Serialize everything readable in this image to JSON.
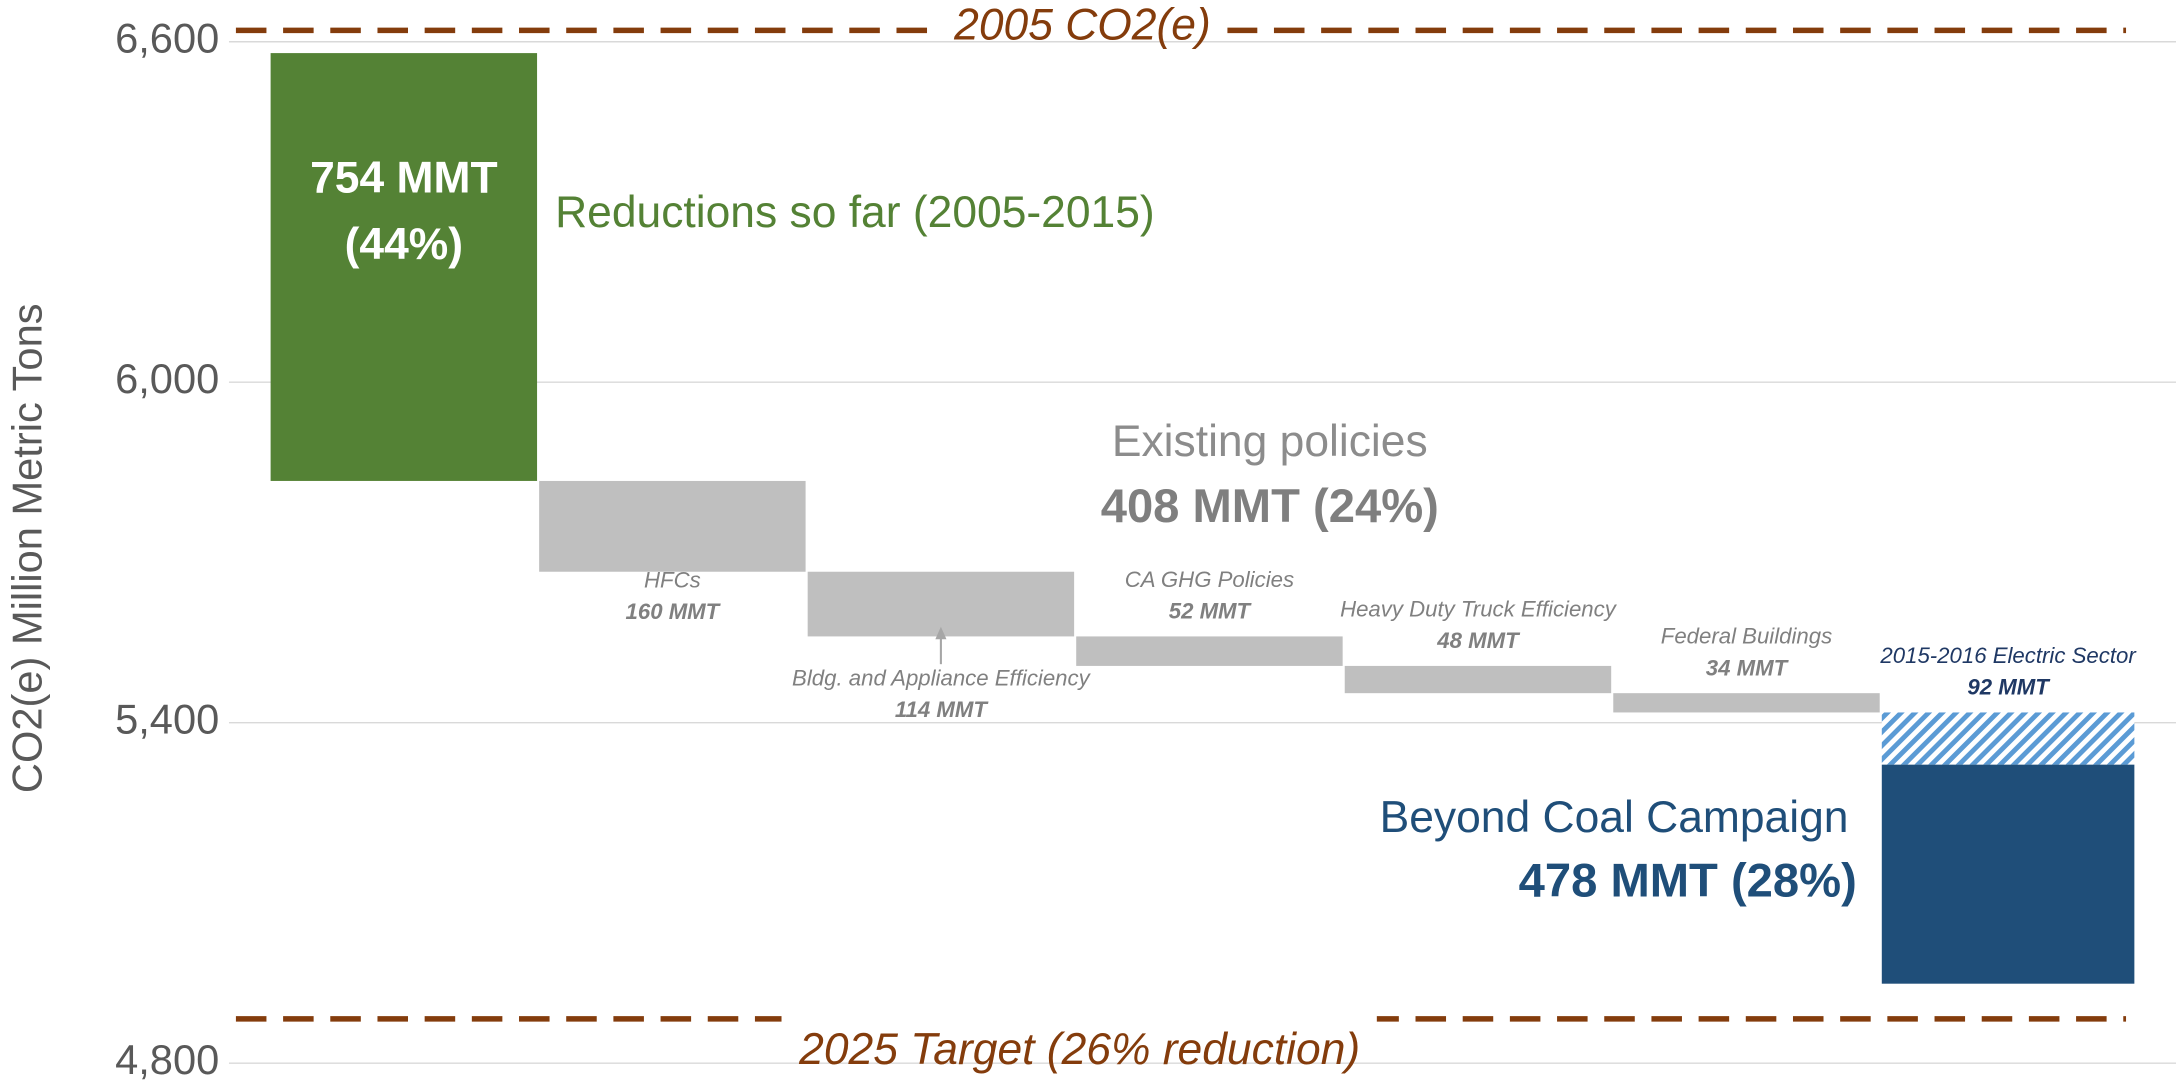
{
  "chart_data": {
    "type": "waterfall",
    "y_label": "CO2(e) Million Metric Tons",
    "ylim": [
      4800,
      6600
    ],
    "yticks": [
      {
        "value": 4800,
        "label": "4,800"
      },
      {
        "value": 5400,
        "label": "5,400"
      },
      {
        "value": 6000,
        "label": "6,000"
      },
      {
        "value": 6600,
        "label": "6,600"
      }
    ],
    "grid": true,
    "start": 6580,
    "steps": [
      {
        "name": "Reductions so far (2005-2015)",
        "value": 754,
        "value_label": "754 MMT",
        "share_label": "(44%)",
        "color": "#548235"
      },
      {
        "name": "HFCs",
        "value": 160,
        "value_label": "160 MMT",
        "color": "#bfbfbf"
      },
      {
        "name": "Bldg. and Appliance Efficiency",
        "value": 114,
        "value_label": "114 MMT",
        "color": "#bfbfbf"
      },
      {
        "name": "CA GHG Policies",
        "value": 52,
        "value_label": "52 MMT",
        "color": "#bfbfbf"
      },
      {
        "name": "Heavy Duty Truck Efficiency",
        "value": 48,
        "value_label": "48 MMT",
        "color": "#bfbfbf"
      },
      {
        "name": "Federal Buildings",
        "value": 34,
        "value_label": "34 MMT",
        "color": "#bfbfbf"
      },
      {
        "name": "2015-2016 Electric Sector",
        "value": 92,
        "value_label": "92 MMT",
        "color": "#5b9bd5",
        "hatched": true
      },
      {
        "name": null,
        "value": 386,
        "color": "#1f4e79"
      }
    ],
    "groups": [
      {
        "label": "Existing policies",
        "value_label": "408 MMT (24%)"
      },
      {
        "label": "Beyond Coal Campaign",
        "value_label": "478 MMT (28%)"
      }
    ],
    "reference_lines": [
      {
        "label": "2005 CO2(e)",
        "value": 6620,
        "color": "#843c0c"
      },
      {
        "label": "2025 Target (26% reduction)",
        "value": 4878,
        "color": "#843c0c"
      }
    ]
  }
}
